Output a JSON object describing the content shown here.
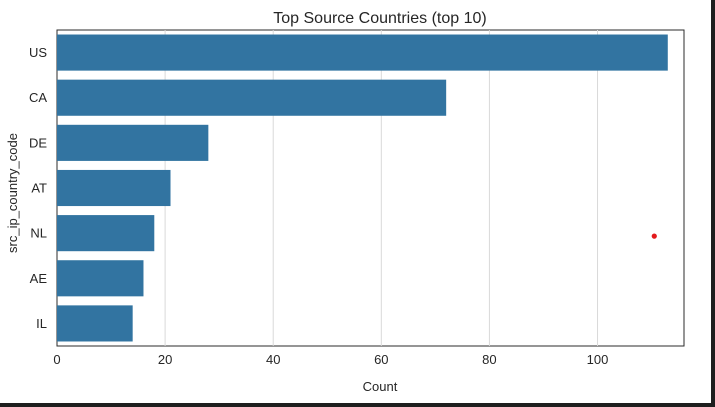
{
  "chart_data": {
    "type": "bar",
    "orientation": "horizontal",
    "title": "Top Source Countries (top 10)",
    "xlabel": "Count",
    "ylabel": "src_ip_country_code",
    "categories": [
      "US",
      "CA",
      "DE",
      "AT",
      "NL",
      "AE",
      "IL"
    ],
    "values": [
      113,
      72,
      28,
      21,
      18,
      16,
      14
    ],
    "xlim": [
      0,
      116
    ],
    "xticks": [
      0,
      20,
      40,
      60,
      80,
      100
    ],
    "grid": "vertical",
    "bar_color": "#3274a1",
    "marker": {
      "x": 110.5,
      "category_index": 4,
      "color": "#e31a1c"
    }
  }
}
